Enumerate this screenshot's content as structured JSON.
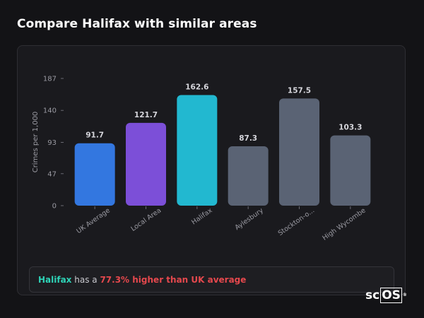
{
  "page": {
    "title": "Compare Halifax with similar areas"
  },
  "chart_data": {
    "type": "bar",
    "categories": [
      "UK Average",
      "Local Area",
      "Halifax",
      "Aylesbury",
      "Stockton-o...",
      "High Wycombe"
    ],
    "values": [
      91.7,
      121.7,
      162.6,
      87.3,
      157.5,
      103.3
    ],
    "value_labels": [
      "91.7",
      "121.7",
      "162.6",
      "87.3",
      "157.5",
      "103.3"
    ],
    "colors": [
      "#3377e0",
      "#7c4fd8",
      "#22b8d0",
      "#5a6374",
      "#5a6374",
      "#5a6374"
    ],
    "title": "",
    "xlabel": "",
    "ylabel": "Crimes per 1,000",
    "ylim": [
      0,
      187
    ],
    "yticks": [
      0,
      47,
      93,
      140,
      187
    ],
    "ytick_labels": [
      "0",
      "47",
      "93",
      "140",
      "187"
    ],
    "grid": false,
    "legend": "none"
  },
  "summary": {
    "area": "Halifax",
    "connector": " has a ",
    "highlight": "77.3% higher than UK average"
  },
  "colors": {
    "area_accent": "#2ed3b7",
    "highlight_red": "#e5484d",
    "background": "#131316",
    "card": "#1a1a1e"
  },
  "logo": {
    "prefix": "sc",
    "boxed": "OS",
    "mark": "®"
  }
}
